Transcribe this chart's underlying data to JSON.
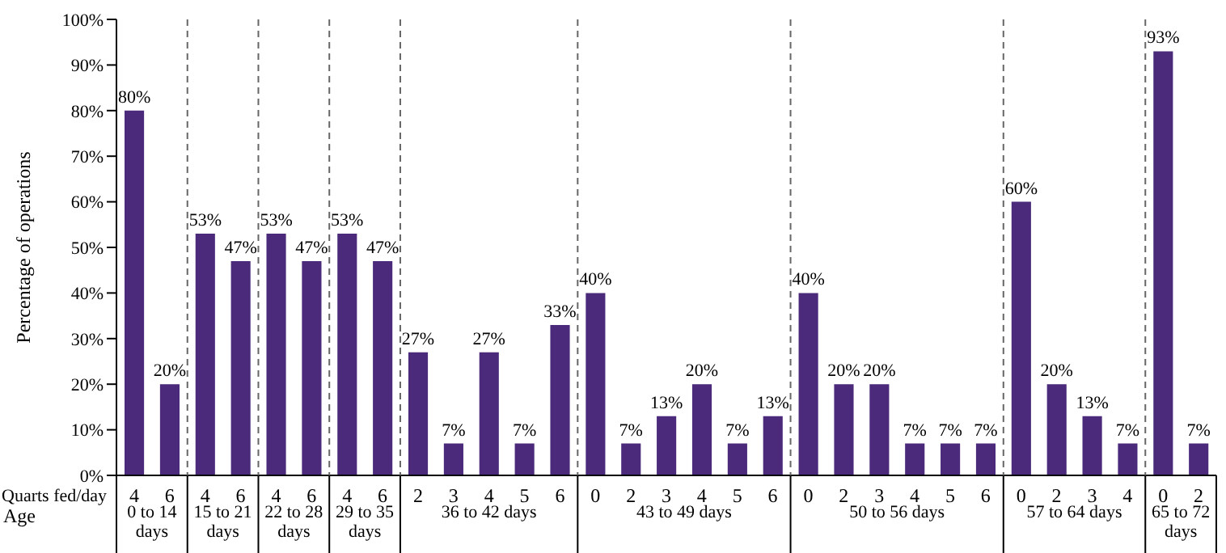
{
  "chart_data": {
    "type": "bar",
    "ylabel": "Percentage of operations",
    "xlabel": "Quarts fed/day",
    "categories": [
      "4",
      "6",
      "4",
      "6",
      "4",
      "6",
      "4",
      "6",
      "2",
      "3",
      "4",
      "5",
      "6",
      "0",
      "2",
      "3",
      "4",
      "5",
      "6",
      "0",
      "2",
      "3",
      "4",
      "5",
      "6",
      "0",
      "2",
      "3",
      "4",
      "0",
      "2"
    ],
    "values": [
      80,
      20,
      53,
      47,
      53,
      47,
      53,
      47,
      27,
      7,
      27,
      7,
      33,
      40,
      7,
      13,
      20,
      7,
      13,
      40,
      20,
      20,
      7,
      7,
      7,
      60,
      20,
      13,
      7,
      93,
      7
    ],
    "value_labels": [
      "80%",
      "20%",
      "53%",
      "47%",
      "53%",
      "47%",
      "53%",
      "47%",
      "27%",
      "7%",
      "27%",
      "7%",
      "33%",
      "40%",
      "7%",
      "13%",
      "20%",
      "7%",
      "13%",
      "40%",
      "20%",
      "20%",
      "7%",
      "7%",
      "7%",
      "60%",
      "20%",
      "13%",
      "7%",
      "93%",
      "7%"
    ],
    "color": "#4b2a7b",
    "ylim": [
      0,
      100
    ],
    "yticks": [
      {
        "value": 0,
        "label": "0%"
      },
      {
        "value": 10,
        "label": "10%"
      },
      {
        "value": 20,
        "label": "20%"
      },
      {
        "value": 30,
        "label": "30%"
      },
      {
        "value": 40,
        "label": "40%"
      },
      {
        "value": 50,
        "label": "50%"
      },
      {
        "value": 60,
        "label": "60%"
      },
      {
        "value": 70,
        "label": "70%"
      },
      {
        "value": 80,
        "label": "80%"
      },
      {
        "value": 90,
        "label": "90%"
      },
      {
        "value": 100,
        "label": "100%"
      }
    ],
    "annotations": [
      "Age",
      "0 to 14 days",
      "15 to 21 days",
      "22 to 28 days",
      "29 to 35 days",
      "36 to 42 days",
      "43 to 49 days",
      "50 to 56 days",
      "57 to 64 days",
      "65 to 72 days"
    ]
  }
}
